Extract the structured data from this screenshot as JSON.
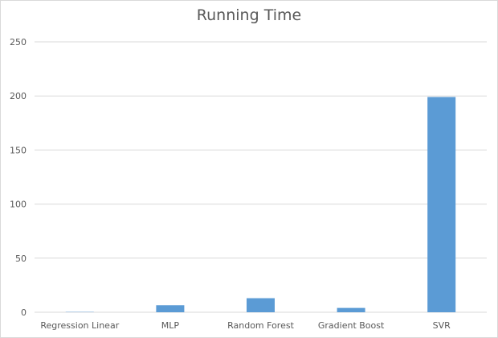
{
  "chart_data": {
    "type": "bar",
    "title": "Running Time",
    "categories": [
      "Regression Linear",
      "MLP",
      "Random Forest",
      "Gradient Boost",
      "SVR"
    ],
    "values": [
      0.3,
      6.5,
      13,
      4,
      199
    ],
    "ylim": [
      0,
      250
    ],
    "yticks": [
      0,
      50,
      100,
      150,
      200,
      250
    ],
    "grid": true,
    "legend": "none",
    "bar_color": "#5b9bd5",
    "grid_color": "#d9d9d9",
    "text_color": "#595959"
  }
}
